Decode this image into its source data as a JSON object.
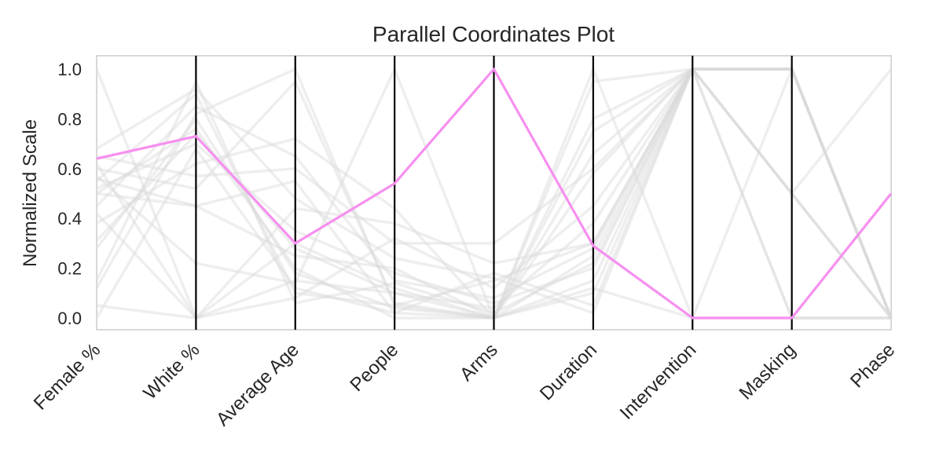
{
  "chart_data": {
    "type": "parallel-coordinates",
    "title": "Parallel Coordinates Plot",
    "ylabel": "Normalized Scale",
    "ylim": [
      0,
      1
    ],
    "y_ticks": [
      "0.0",
      "0.2",
      "0.4",
      "0.6",
      "0.8",
      "1.0"
    ],
    "axes": [
      "Female %",
      "White %",
      "Average Age",
      "People",
      "Arms",
      "Duration",
      "Intervention",
      "Masking",
      "Phase"
    ],
    "grid": false,
    "highlight_color": "#f78ff0",
    "background_line_color": "#d9d9d9",
    "axis_line_color": "#000000",
    "highlighted": {
      "values": [
        0.64,
        0.73,
        0.3,
        0.54,
        1.0,
        0.29,
        0.0,
        0.0,
        0.5
      ]
    },
    "background": [
      [
        1.0,
        0.0,
        0.15,
        0.1,
        0.0,
        0.95,
        1.0,
        1.0,
        0.0
      ],
      [
        0.55,
        0.9,
        0.1,
        0.05,
        0.15,
        0.3,
        1.0,
        1.0,
        0.0
      ],
      [
        0.5,
        0.45,
        0.25,
        0.2,
        0.0,
        0.75,
        1.0,
        0.5,
        1.0
      ],
      [
        0.0,
        0.68,
        0.12,
        0.02,
        0.0,
        1.0,
        0.0,
        0.0,
        0.0
      ],
      [
        0.15,
        0.95,
        0.06,
        0.14,
        0.02,
        0.22,
        1.0,
        1.0,
        0.0
      ],
      [
        0.65,
        0.57,
        0.6,
        0.3,
        0.3,
        0.6,
        1.0,
        0.5,
        0.0
      ],
      [
        0.28,
        0.8,
        0.18,
        0.04,
        0.0,
        0.15,
        1.0,
        1.0,
        0.0
      ],
      [
        0.42,
        0.0,
        0.08,
        0.32,
        0.12,
        0.45,
        1.0,
        0.0,
        0.0
      ],
      [
        0.52,
        0.7,
        0.35,
        0.18,
        0.06,
        0.2,
        1.0,
        1.0,
        0.0
      ],
      [
        0.56,
        0.45,
        0.55,
        0.02,
        0.18,
        0.05,
        1.0,
        1.0,
        0.0
      ],
      [
        0.12,
        0.82,
        1.0,
        0.05,
        0.0,
        0.1,
        1.0,
        0.5,
        0.0
      ],
      [
        0.68,
        0.92,
        0.48,
        0.24,
        0.16,
        0.02,
        1.0,
        1.0,
        0.0
      ],
      [
        0.38,
        0.62,
        0.72,
        0.44,
        0.0,
        0.58,
        1.0,
        0.0,
        0.0
      ],
      [
        0.31,
        0.74,
        0.28,
        0.1,
        0.04,
        0.38,
        1.0,
        1.0,
        0.0
      ],
      [
        0.57,
        0.22,
        0.14,
        1.0,
        0.0,
        0.12,
        0.0,
        1.0,
        0.0
      ],
      [
        0.45,
        0.85,
        0.65,
        0.15,
        0.08,
        0.28,
        1.0,
        1.0,
        0.0
      ],
      [
        0.6,
        0.52,
        0.95,
        0.06,
        0.0,
        0.8,
        1.0,
        0.5,
        0.0
      ],
      [
        0.05,
        0.0,
        0.44,
        0.38,
        0.22,
        0.3,
        1.0,
        1.0,
        0.0
      ],
      [
        0.5,
        0.76,
        0.2,
        0.0,
        0.0,
        0.25,
        1.0,
        1.0,
        0.0
      ],
      [
        0.62,
        0.0,
        0.3,
        0.12,
        0.0,
        0.66,
        1.0,
        1.0,
        0.0
      ]
    ]
  }
}
